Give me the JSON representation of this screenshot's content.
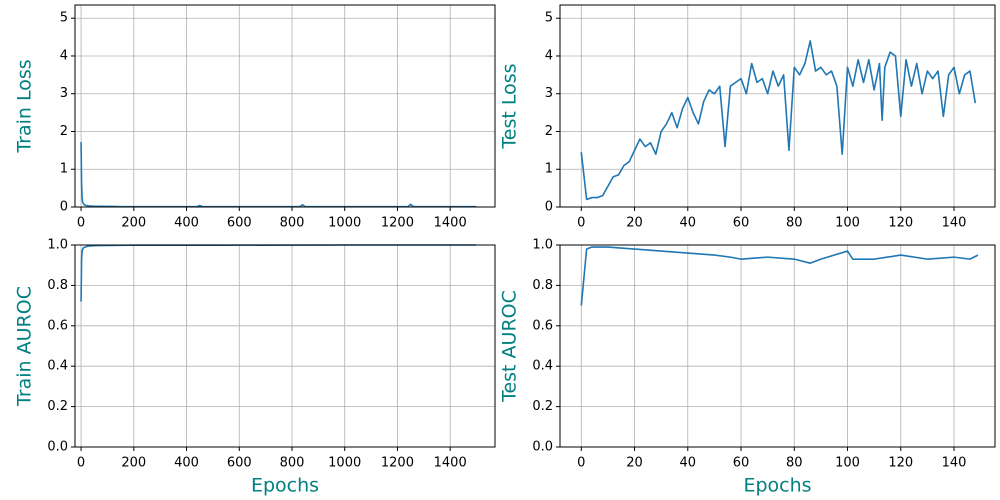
{
  "chart_data": [
    {
      "type": "line",
      "ylabel": "Train Loss",
      "color": "#1f77b4",
      "grid": true,
      "x": [
        0,
        2,
        4,
        6,
        10,
        15,
        20,
        30,
        50,
        80,
        120,
        160,
        200,
        300,
        400,
        440,
        450,
        460,
        600,
        700,
        800,
        830,
        840,
        850,
        1000,
        1100,
        1200,
        1240,
        1250,
        1260,
        1400,
        1499
      ],
      "values": [
        1.72,
        0.6,
        0.25,
        0.12,
        0.08,
        0.05,
        0.04,
        0.03,
        0.02,
        0.02,
        0.015,
        0.01,
        0.01,
        0.01,
        0.01,
        0.01,
        0.04,
        0.01,
        0.01,
        0.01,
        0.01,
        0.01,
        0.06,
        0.01,
        0.01,
        0.01,
        0.01,
        0.01,
        0.07,
        0.01,
        0.01,
        0.01
      ],
      "xlim": [
        -23,
        1570
      ],
      "ylim": [
        0,
        5.35
      ],
      "xticks": [
        0,
        200,
        400,
        600,
        800,
        1000,
        1200,
        1400
      ],
      "yticks": [
        0,
        1,
        2,
        3,
        4,
        5
      ]
    },
    {
      "type": "line",
      "ylabel": "Test Loss",
      "color": "#1f77b4",
      "grid": true,
      "x": [
        0,
        2,
        4,
        6,
        8,
        10,
        12,
        14,
        16,
        18,
        20,
        22,
        24,
        26,
        28,
        30,
        32,
        34,
        36,
        38,
        40,
        42,
        44,
        46,
        48,
        50,
        52,
        54,
        56,
        58,
        60,
        62,
        64,
        66,
        68,
        70,
        72,
        74,
        76,
        78,
        80,
        82,
        84,
        86,
        88,
        90,
        92,
        94,
        96,
        98,
        100,
        102,
        104,
        106,
        108,
        110,
        112,
        113,
        114,
        116,
        118,
        120,
        122,
        124,
        126,
        128,
        130,
        132,
        134,
        136,
        138,
        140,
        142,
        144,
        146,
        148
      ],
      "values": [
        1.45,
        0.2,
        0.25,
        0.25,
        0.3,
        0.55,
        0.8,
        0.85,
        1.1,
        1.2,
        1.5,
        1.8,
        1.6,
        1.7,
        1.4,
        2.0,
        2.2,
        2.5,
        2.1,
        2.6,
        2.9,
        2.5,
        2.2,
        2.8,
        3.1,
        3.0,
        3.2,
        1.6,
        3.2,
        3.3,
        3.4,
        3.0,
        3.8,
        3.3,
        3.4,
        3.0,
        3.6,
        3.2,
        3.5,
        1.5,
        3.7,
        3.5,
        3.8,
        4.4,
        3.6,
        3.7,
        3.5,
        3.6,
        3.2,
        1.4,
        3.7,
        3.2,
        3.9,
        3.3,
        3.9,
        3.1,
        3.8,
        2.3,
        3.7,
        4.1,
        4.0,
        2.4,
        3.9,
        3.2,
        3.8,
        3.0,
        3.6,
        3.4,
        3.6,
        2.4,
        3.5,
        3.7,
        3.0,
        3.5,
        3.6,
        2.75
      ],
      "xlim": [
        -8,
        155.4
      ],
      "ylim": [
        0,
        5.35
      ],
      "xticks": [
        0,
        20,
        40,
        60,
        80,
        100,
        120,
        140
      ],
      "yticks": [
        0,
        1,
        2,
        3,
        4,
        5
      ]
    },
    {
      "type": "line",
      "ylabel": "Train AUROC",
      "xlabel": "Epochs",
      "color": "#1f77b4",
      "grid": true,
      "x": [
        0,
        2,
        4,
        8,
        15,
        30,
        60,
        100,
        200,
        500,
        1000,
        1499
      ],
      "values": [
        0.72,
        0.93,
        0.97,
        0.985,
        0.99,
        0.995,
        0.997,
        0.998,
        0.999,
        0.999,
        1.0,
        1.0
      ],
      "xlim": [
        -23,
        1570
      ],
      "ylim": [
        0,
        1
      ],
      "xticks": [
        0,
        200,
        400,
        600,
        800,
        1000,
        1200,
        1400
      ],
      "yticks": [
        {
          "value": 0,
          "label": "0.0"
        },
        0.2,
        0.4,
        0.6,
        0.8,
        {
          "value": 1,
          "label": "1.0"
        }
      ]
    },
    {
      "type": "line",
      "ylabel": "Test AUROC",
      "xlabel": "Epochs",
      "color": "#1f77b4",
      "grid": true,
      "x": [
        0,
        2,
        4,
        10,
        20,
        30,
        40,
        50,
        56,
        60,
        70,
        80,
        86,
        90,
        100,
        102,
        110,
        120,
        130,
        140,
        146,
        149
      ],
      "values": [
        0.7,
        0.98,
        0.99,
        0.99,
        0.98,
        0.97,
        0.96,
        0.95,
        0.94,
        0.93,
        0.94,
        0.93,
        0.91,
        0.93,
        0.97,
        0.93,
        0.93,
        0.95,
        0.93,
        0.94,
        0.93,
        0.95
      ],
      "xlim": [
        -8,
        155.4
      ],
      "ylim": [
        0,
        1
      ],
      "xticks": [
        0,
        20,
        40,
        60,
        80,
        100,
        120,
        140
      ],
      "yticks": [
        {
          "value": 0,
          "label": "0.0"
        },
        0.2,
        0.4,
        0.6,
        0.8,
        {
          "value": 1,
          "label": "1.0"
        }
      ]
    }
  ]
}
